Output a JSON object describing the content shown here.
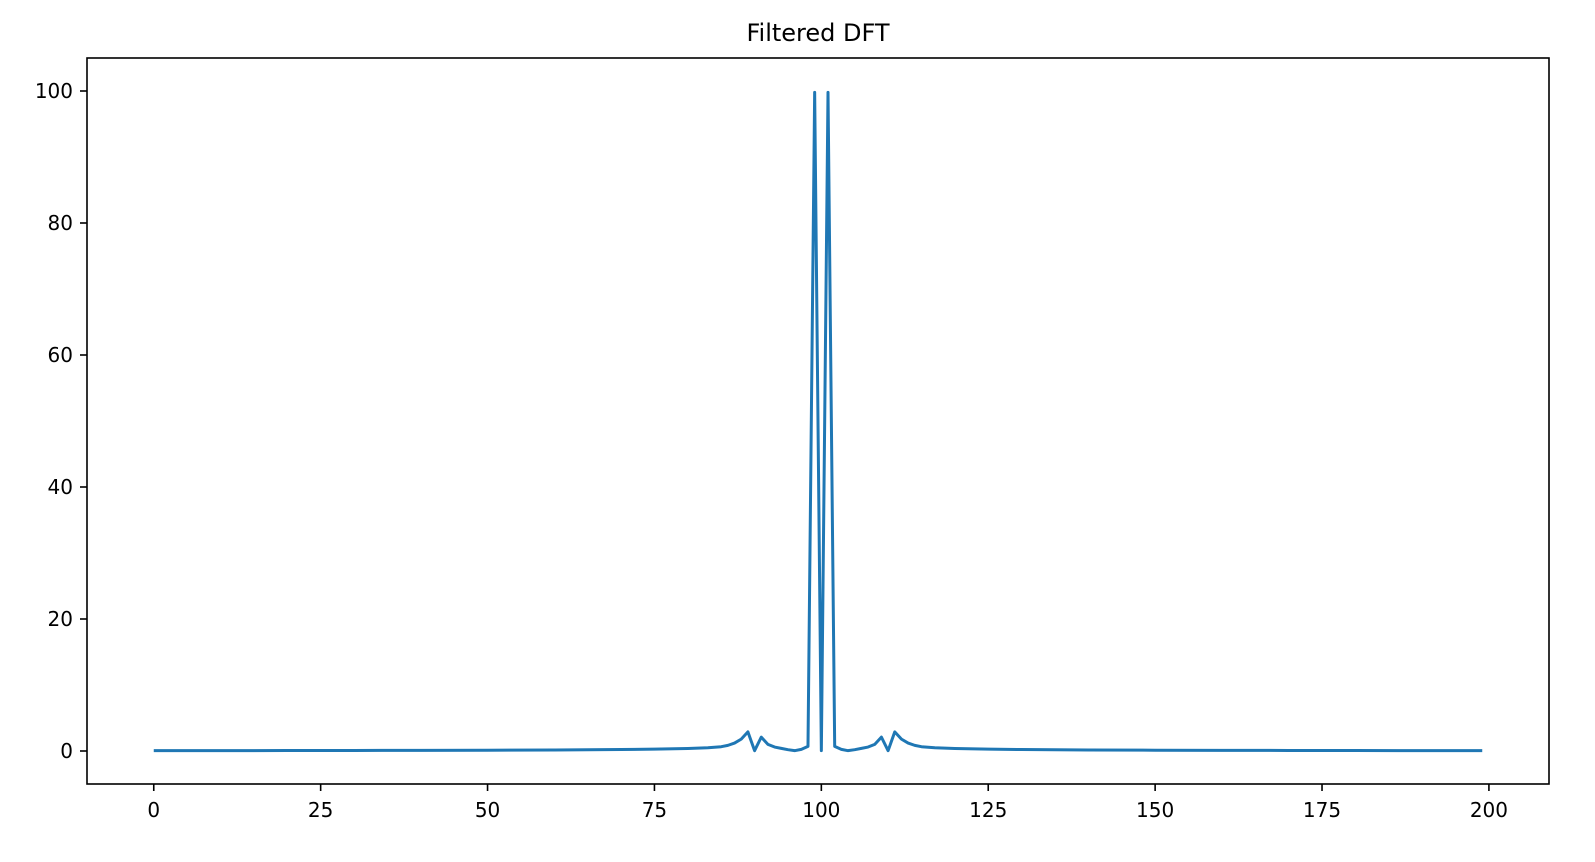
{
  "chart_data": {
    "type": "line",
    "title": "Filtered DFT",
    "xlabel": "",
    "ylabel": "",
    "xlim": [
      -10,
      209
    ],
    "ylim": [
      -5,
      105
    ],
    "xticks": [
      0,
      25,
      50,
      75,
      100,
      125,
      150,
      175,
      200
    ],
    "yticks": [
      0,
      20,
      40,
      60,
      80,
      100
    ],
    "grid": false,
    "series": [
      {
        "color": "#1f77b4",
        "x": [
          0,
          10,
          20,
          30,
          40,
          50,
          60,
          70,
          75,
          80,
          83,
          85,
          86,
          87,
          88,
          89,
          90,
          91,
          92,
          93,
          94,
          95,
          96,
          97,
          98,
          99,
          100,
          101,
          102,
          103,
          104,
          105,
          106,
          107,
          108,
          109,
          110,
          111,
          112,
          113,
          114,
          115,
          117,
          120,
          125,
          130,
          140,
          150,
          160,
          170,
          180,
          190,
          199
        ],
        "y": [
          0.05,
          0.06,
          0.07,
          0.08,
          0.1,
          0.12,
          0.15,
          0.22,
          0.28,
          0.38,
          0.5,
          0.65,
          0.85,
          1.2,
          1.8,
          2.9,
          0.05,
          2.1,
          1.0,
          0.6,
          0.4,
          0.2,
          0.05,
          0.25,
          0.7,
          99.8,
          0.05,
          99.8,
          0.7,
          0.25,
          0.05,
          0.2,
          0.4,
          0.6,
          1.0,
          2.1,
          0.05,
          2.9,
          1.8,
          1.2,
          0.85,
          0.65,
          0.5,
          0.38,
          0.28,
          0.22,
          0.15,
          0.12,
          0.1,
          0.08,
          0.07,
          0.06,
          0.05
        ]
      }
    ]
  }
}
